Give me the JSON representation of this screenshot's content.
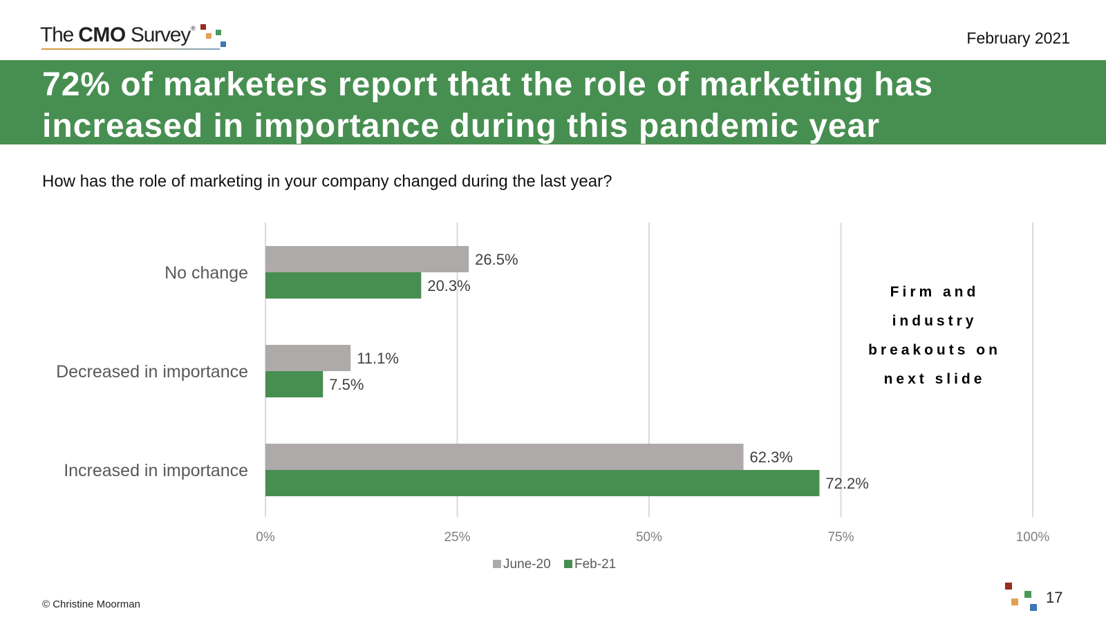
{
  "brand": {
    "logo_the": "The",
    "logo_cmo": "CMO",
    "logo_survey": "Survey",
    "logo_registered": "®"
  },
  "date": "February 2021",
  "title": "72% of marketers report that the role of marketing has increased in importance during this pandemic year",
  "question": "How has the role of marketing in your company changed during the last year?",
  "side_note": "Firm and industry breakouts on next slide",
  "footer": "© Christine Moorman",
  "page_number": "17",
  "colors": {
    "banner": "#478f51",
    "june20": "#aeaaa9",
    "feb21": "#478f51",
    "logo_red": "#9b2a1f",
    "logo_orange": "#e4a052",
    "logo_green": "#4a9a5a",
    "logo_blue": "#3f78b5"
  },
  "chart_data": {
    "type": "bar",
    "orientation": "horizontal",
    "categories": [
      "No change",
      "Decreased in importance",
      "Increased in importance"
    ],
    "series": [
      {
        "name": "June-20",
        "color": "#aeaaa9",
        "values": [
          26.5,
          11.1,
          62.3
        ],
        "labels": [
          "26.5%",
          "11.1%",
          "62.3%"
        ]
      },
      {
        "name": "Feb-21",
        "color": "#478f51",
        "values": [
          20.3,
          7.5,
          72.2
        ],
        "labels": [
          "20.3%",
          "7.5%",
          "72.2%"
        ]
      }
    ],
    "xlim": [
      0,
      100
    ],
    "xticks": [
      0,
      25,
      50,
      75,
      100
    ],
    "xtick_labels": [
      "0%",
      "25%",
      "50%",
      "75%",
      "100%"
    ],
    "grid": true,
    "legend": "bottom"
  }
}
